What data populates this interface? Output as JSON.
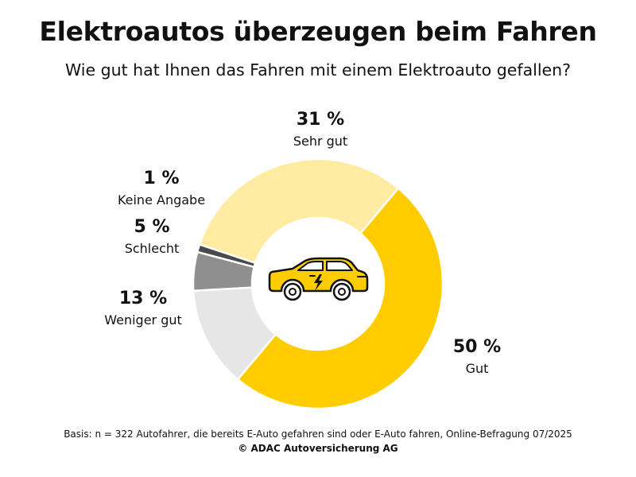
{
  "title": "Elektroautos überzeugen beim Fahren",
  "subtitle": "Wie gut hat Ihnen das Fahren mit einem Elektroauto gefallen?",
  "footnote": "Basis: n = 322 Autofahrer, die bereits E-Auto gefahren sind oder E-Auto fahren, Online-Befragung 07/2025",
  "copyright": "© ADAC Autoversicherung AG",
  "center_icon": "electric-car-icon",
  "colors": {
    "accent": "#FFCC00",
    "car_body": "#FFCC00",
    "car_outline": "#111111"
  },
  "chart_data": {
    "type": "pie",
    "style": "donut",
    "slices": [
      {
        "label": "Gut",
        "value": 50,
        "value_label": "50 %",
        "color": "#FFCC00"
      },
      {
        "label": "Weniger gut",
        "value": 13,
        "value_label": "13 %",
        "color": "#E6E6E6"
      },
      {
        "label": "Schlecht",
        "value": 5,
        "value_label": "5 %",
        "color": "#8F8F8F"
      },
      {
        "label": "Keine Angabe",
        "value": 1,
        "value_label": "1 %",
        "color": "#4A4A4A"
      },
      {
        "label": "Sehr gut",
        "value": 31,
        "value_label": "31 %",
        "color": "#FFEBA1"
      }
    ]
  }
}
